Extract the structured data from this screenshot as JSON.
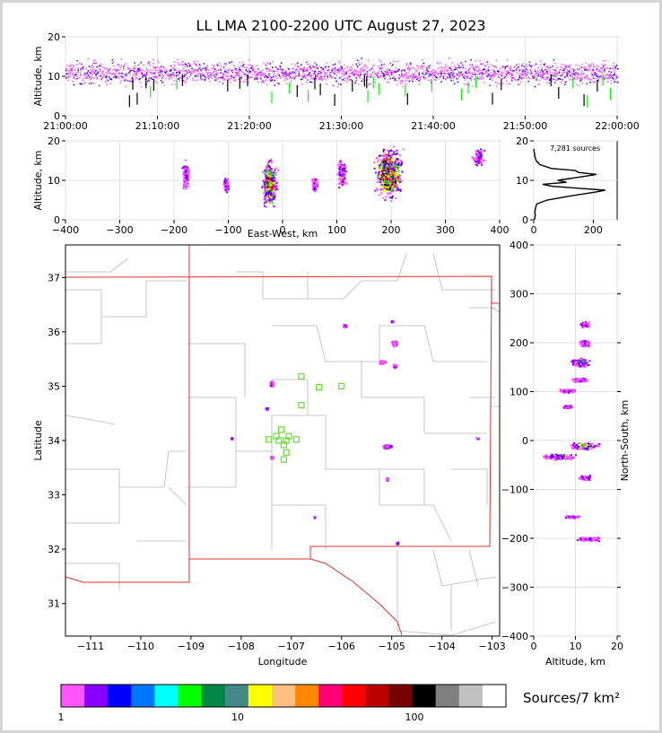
{
  "chart_data": {
    "title": "LL LMA 2100-2200 UTC August 27, 2023",
    "panels": [
      {
        "id": "time-altitude",
        "type": "scatter",
        "ylabel": "Altitude, km",
        "ylim": [
          0,
          20
        ],
        "yticks": [
          "0",
          "10",
          "20"
        ],
        "xticks": [
          "21:00:00",
          "21:10:00",
          "21:20:00",
          "21:30:00",
          "21:40:00",
          "21:50:00",
          "22:00:00"
        ],
        "xlim_minutes": [
          0,
          60
        ],
        "grid": true,
        "description": "VHF sources vs time, mostly 5-15 km altitude"
      },
      {
        "id": "eastwest-altitude",
        "type": "heatmap",
        "xlabel": "East-West, km",
        "ylabel": "Altitude, km",
        "xlim": [
          -400,
          400
        ],
        "ylim": [
          0,
          20
        ],
        "xticks": [
          "−400",
          "−300",
          "−200",
          "−100",
          "0",
          "100",
          "200",
          "300",
          "400"
        ],
        "yticks": [
          "0",
          "10",
          "20"
        ],
        "clusters": [
          {
            "x": -180,
            "z": 11,
            "w": 8,
            "h": 10,
            "n": 4
          },
          {
            "x": -105,
            "z": 9,
            "w": 6,
            "h": 4,
            "n": 4
          },
          {
            "x": -25,
            "z": 9,
            "w": 16,
            "h": 14,
            "n": 18
          },
          {
            "x": 58,
            "z": 9,
            "w": 6,
            "h": 4,
            "n": 4
          },
          {
            "x": 108,
            "z": 12,
            "w": 10,
            "h": 8,
            "n": 6
          },
          {
            "x": 195,
            "z": 12,
            "w": 30,
            "h": 16,
            "n": 22
          },
          {
            "x": 360,
            "z": 16,
            "w": 12,
            "h": 6,
            "n": 3
          }
        ]
      },
      {
        "id": "altitude-histogram",
        "type": "line",
        "annotation": "7,281 sources",
        "xlim": [
          0,
          280
        ],
        "ylim": [
          0,
          20
        ],
        "xticks": [
          "0",
          "200"
        ],
        "yticks": [
          "0",
          "10",
          "20"
        ],
        "profile": [
          {
            "z": 0,
            "n": 2
          },
          {
            "z": 1,
            "n": 5
          },
          {
            "z": 2,
            "n": 4
          },
          {
            "z": 3,
            "n": 6
          },
          {
            "z": 4,
            "n": 10
          },
          {
            "z": 5,
            "n": 45
          },
          {
            "z": 6,
            "n": 120
          },
          {
            "z": 7,
            "n": 205
          },
          {
            "z": 7.5,
            "n": 240
          },
          {
            "z": 8,
            "n": 150
          },
          {
            "z": 8.5,
            "n": 60
          },
          {
            "z": 9,
            "n": 30
          },
          {
            "z": 9.5,
            "n": 110
          },
          {
            "z": 10,
            "n": 80
          },
          {
            "z": 11,
            "n": 170
          },
          {
            "z": 11.5,
            "n": 210
          },
          {
            "z": 12,
            "n": 150
          },
          {
            "z": 12.5,
            "n": 140
          },
          {
            "z": 13,
            "n": 60
          },
          {
            "z": 14,
            "n": 20
          },
          {
            "z": 15,
            "n": 8
          },
          {
            "z": 16,
            "n": 4
          },
          {
            "z": 17,
            "n": 2
          },
          {
            "z": 18,
            "n": 0
          }
        ]
      },
      {
        "id": "plan-view",
        "type": "heatmap",
        "xlabel": "Longitude",
        "ylabel": "Latitude",
        "xlim": [
          -111.5,
          -102.85
        ],
        "ylim": [
          30.4,
          37.6
        ],
        "xticks": [
          "−111",
          "−110",
          "−109",
          "−108",
          "−107",
          "−106",
          "−105",
          "−104",
          "−103"
        ],
        "yticks": [
          "31",
          "32",
          "33",
          "34",
          "35",
          "36",
          "37"
        ],
        "stations": [
          [
            -106.8,
            35.18
          ],
          [
            -106.45,
            34.98
          ],
          [
            -106.0,
            35.0
          ],
          [
            -106.8,
            34.65
          ],
          [
            -107.2,
            34.2
          ],
          [
            -107.05,
            34.08
          ],
          [
            -107.3,
            34.08
          ],
          [
            -107.45,
            34.02
          ],
          [
            -107.25,
            34.0
          ],
          [
            -107.1,
            34.0
          ],
          [
            -106.9,
            34.02
          ],
          [
            -107.15,
            33.92
          ],
          [
            -107.1,
            33.78
          ],
          [
            -107.15,
            33.65
          ]
        ],
        "clusters": [
          {
            "lon": -105.95,
            "lat": 36.12,
            "w": 0.08,
            "h": 0.06,
            "n": 4
          },
          {
            "lon": -105.0,
            "lat": 36.2,
            "w": 0.06,
            "h": 0.04,
            "n": 2
          },
          {
            "lon": -104.95,
            "lat": 35.8,
            "w": 0.15,
            "h": 0.12,
            "n": 5
          },
          {
            "lon": -105.2,
            "lat": 35.45,
            "w": 0.15,
            "h": 0.08,
            "n": 4
          },
          {
            "lon": -104.95,
            "lat": 35.38,
            "w": 0.08,
            "h": 0.08,
            "n": 3
          },
          {
            "lon": -107.4,
            "lat": 35.05,
            "w": 0.1,
            "h": 0.12,
            "n": 4
          },
          {
            "lon": -107.5,
            "lat": 34.6,
            "w": 0.08,
            "h": 0.05,
            "n": 2
          },
          {
            "lon": -108.2,
            "lat": 34.05,
            "w": 0.05,
            "h": 0.04,
            "n": 2
          },
          {
            "lon": -107.4,
            "lat": 33.7,
            "w": 0.06,
            "h": 0.06,
            "n": 3
          },
          {
            "lon": -105.1,
            "lat": 33.9,
            "w": 0.22,
            "h": 0.08,
            "n": 8
          },
          {
            "lon": -105.1,
            "lat": 33.3,
            "w": 0.05,
            "h": 0.06,
            "n": 2
          },
          {
            "lon": -104.9,
            "lat": 32.12,
            "w": 0.06,
            "h": 0.06,
            "n": 3
          },
          {
            "lon": -106.55,
            "lat": 32.6,
            "w": 0.03,
            "h": 0.04,
            "n": 1
          },
          {
            "lon": -103.3,
            "lat": 34.05,
            "w": 0.06,
            "h": 0.03,
            "n": 1
          }
        ]
      },
      {
        "id": "altitude-northsouth",
        "type": "heatmap",
        "xlabel": "Altitude, km",
        "ylabel": "North-South, km",
        "xlim": [
          0,
          20
        ],
        "ylim": [
          -400,
          400
        ],
        "xticks": [
          "0",
          "10",
          "20"
        ],
        "yticks": [
          "−400",
          "−300",
          "−200",
          "−100",
          "0",
          "100",
          "200",
          "300",
          "400"
        ],
        "clusters": [
          {
            "z": 12,
            "y": 238,
            "w": 3,
            "h": 8,
            "n": 4
          },
          {
            "z": 12,
            "y": 200,
            "w": 3,
            "h": 10,
            "n": 4
          },
          {
            "z": 11,
            "y": 160,
            "w": 5,
            "h": 14,
            "n": 8
          },
          {
            "z": 11,
            "y": 125,
            "w": 5,
            "h": 6,
            "n": 4
          },
          {
            "z": 8,
            "y": 103,
            "w": 5,
            "h": 6,
            "n": 4
          },
          {
            "z": 8,
            "y": 70,
            "w": 3,
            "h": 5,
            "n": 2
          },
          {
            "z": 12,
            "y": -10,
            "w": 8,
            "h": 10,
            "n": 12
          },
          {
            "z": 6,
            "y": -32,
            "w": 10,
            "h": 8,
            "n": 10
          },
          {
            "z": 12,
            "y": -75,
            "w": 4,
            "h": 8,
            "n": 3
          },
          {
            "z": 9,
            "y": -155,
            "w": 4,
            "h": 4,
            "n": 2
          },
          {
            "z": 13,
            "y": -200,
            "w": 7,
            "h": 6,
            "n": 5
          }
        ]
      }
    ],
    "colorbar": {
      "label": "Sources/7 km²",
      "scale": "log",
      "ticks": [
        "1",
        "10",
        "100"
      ],
      "colors": [
        "#ff55ff",
        "#8800ff",
        "#0000ff",
        "#0077ff",
        "#00ffff",
        "#00ff00",
        "#008844",
        "#448888",
        "#ffff00",
        "#ffc080",
        "#ff8800",
        "#ff0077",
        "#ff0000",
        "#bb0000",
        "#770000",
        "#000000",
        "#808080",
        "#c0c0c0",
        "#ffffff"
      ]
    }
  }
}
